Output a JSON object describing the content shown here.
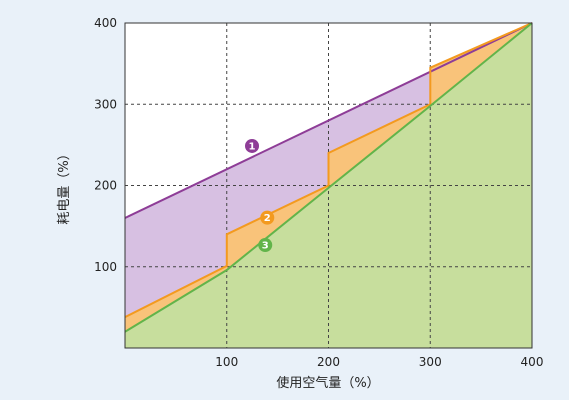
{
  "chart_data": {
    "type": "area",
    "xlabel": "使用空气量（%）",
    "ylabel": "耗电量（%）",
    "xlim": [
      0,
      400
    ],
    "ylim": [
      0,
      400
    ],
    "x_ticks": [
      "100",
      "200",
      "300",
      "400"
    ],
    "y_ticks": [
      "100",
      "200",
      "300",
      "400"
    ],
    "grid": true,
    "series": [
      {
        "marker": "1",
        "color": "#8e3d97",
        "fill": "#d7c0e2",
        "points": [
          [
            0,
            160
          ],
          [
            400,
            400
          ]
        ]
      },
      {
        "marker": "2",
        "color": "#f39a1f",
        "fill": "#f9c37a",
        "points": [
          [
            0,
            38
          ],
          [
            100,
            101
          ],
          [
            100,
            140
          ],
          [
            200,
            200
          ],
          [
            200,
            240
          ],
          [
            300,
            300
          ],
          [
            300,
            345
          ],
          [
            400,
            400
          ]
        ]
      },
      {
        "marker": "3",
        "color": "#62b44a",
        "fill": "#c7de9d",
        "points": [
          [
            0,
            20
          ],
          [
            100,
            96
          ],
          [
            200,
            197
          ],
          [
            300,
            298
          ],
          [
            400,
            400
          ]
        ]
      }
    ]
  }
}
